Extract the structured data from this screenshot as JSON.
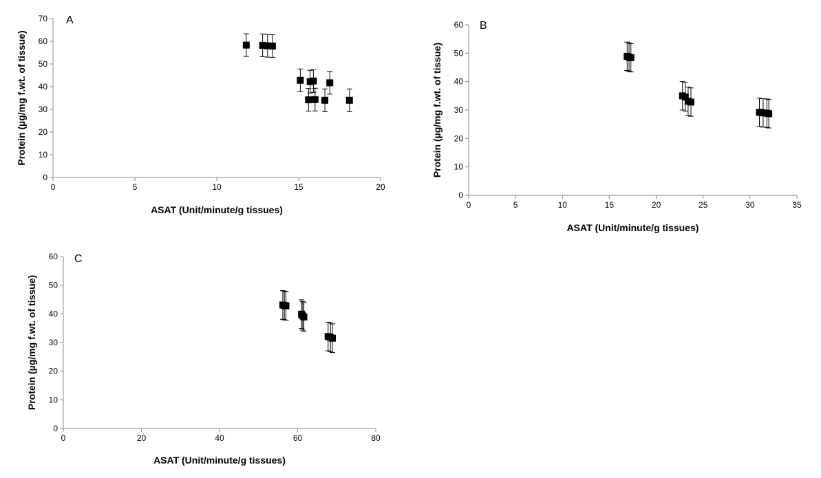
{
  "chart_data": [
    {
      "type": "scatter",
      "panel_label": "A",
      "xlabel": "ASAT (Unit/minute/g tissues)",
      "ylabel": "Protein (µg/mg f.wt. of tissue)",
      "xlim": [
        0,
        20
      ],
      "ylim": [
        0,
        70
      ],
      "xticks": [
        0,
        5,
        10,
        15,
        20
      ],
      "yticks": [
        0,
        10,
        20,
        30,
        40,
        50,
        60,
        70
      ],
      "grid": false,
      "legend": "none",
      "marker": "square",
      "color": "#000000",
      "points": [
        {
          "x": 11.8,
          "y": 58.3,
          "err": 5
        },
        {
          "x": 12.8,
          "y": 58.2,
          "err": 5
        },
        {
          "x": 13.1,
          "y": 58.0,
          "err": 5
        },
        {
          "x": 13.4,
          "y": 57.9,
          "err": 5
        },
        {
          "x": 15.1,
          "y": 42.8,
          "err": 5
        },
        {
          "x": 15.6,
          "y": 34.2,
          "err": 5
        },
        {
          "x": 15.7,
          "y": 42.2,
          "err": 5
        },
        {
          "x": 15.9,
          "y": 42.5,
          "err": 5
        },
        {
          "x": 16.0,
          "y": 34.3,
          "err": 5
        },
        {
          "x": 16.6,
          "y": 34.0,
          "err": 5
        },
        {
          "x": 16.9,
          "y": 41.7,
          "err": 5
        },
        {
          "x": 18.1,
          "y": 34.0,
          "err": 5
        }
      ]
    },
    {
      "type": "scatter",
      "panel_label": "B",
      "xlabel": "ASAT (Unit/minute/g tissues)",
      "ylabel": "Protein (µg/mg f.wt. of tissue)",
      "xlim": [
        0,
        35
      ],
      "ylim": [
        0,
        60
      ],
      "xticks": [
        0,
        5,
        10,
        15,
        20,
        25,
        30,
        35
      ],
      "yticks": [
        0,
        10,
        20,
        30,
        40,
        50,
        60
      ],
      "grid": false,
      "legend": "none",
      "marker": "square",
      "color": "#000000",
      "points": [
        {
          "x": 16.9,
          "y": 48.9,
          "err": 5
        },
        {
          "x": 17.1,
          "y": 48.6,
          "err": 5
        },
        {
          "x": 17.3,
          "y": 48.4,
          "err": 5
        },
        {
          "x": 22.8,
          "y": 35.0,
          "err": 5
        },
        {
          "x": 23.1,
          "y": 34.6,
          "err": 5
        },
        {
          "x": 23.4,
          "y": 33.1,
          "err": 5
        },
        {
          "x": 23.7,
          "y": 32.8,
          "err": 5
        },
        {
          "x": 31.0,
          "y": 29.2,
          "err": 5
        },
        {
          "x": 31.4,
          "y": 29.0,
          "err": 5
        },
        {
          "x": 31.8,
          "y": 28.9,
          "err": 5
        },
        {
          "x": 32.0,
          "y": 28.7,
          "err": 5
        }
      ]
    },
    {
      "type": "scatter",
      "panel_label": "C",
      "xlabel": "ASAT (Unit/minute/g tissues)",
      "ylabel": "Protein (µg/mg f.wt. of tissue)",
      "xlim": [
        0,
        80
      ],
      "ylim": [
        0,
        60
      ],
      "xticks": [
        0,
        20,
        40,
        60,
        80
      ],
      "yticks": [
        0,
        10,
        20,
        30,
        40,
        50,
        60
      ],
      "grid": false,
      "legend": "none",
      "marker": "square",
      "color": "#000000",
      "points": [
        {
          "x": 56.2,
          "y": 43.1,
          "err": 5
        },
        {
          "x": 56.6,
          "y": 42.9,
          "err": 5
        },
        {
          "x": 57.0,
          "y": 42.8,
          "err": 5
        },
        {
          "x": 61.0,
          "y": 39.9,
          "err": 5
        },
        {
          "x": 61.3,
          "y": 39.3,
          "err": 5
        },
        {
          "x": 61.6,
          "y": 38.9,
          "err": 5
        },
        {
          "x": 67.8,
          "y": 32.1,
          "err": 5
        },
        {
          "x": 68.4,
          "y": 31.8,
          "err": 5
        },
        {
          "x": 68.9,
          "y": 31.5,
          "err": 5
        }
      ]
    }
  ]
}
